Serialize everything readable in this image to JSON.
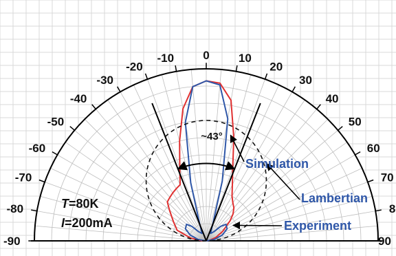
{
  "chart_data": {
    "type": "polar",
    "angle_ticks": [
      "-90",
      "-80",
      "-70",
      "-60",
      "-50",
      "-40",
      "-30",
      "-20",
      "-10",
      "0",
      "10",
      "20",
      "30",
      "40",
      "50",
      "60",
      "70",
      "80",
      "90"
    ],
    "angle_range": [
      -90,
      90
    ],
    "radius_range": [
      0,
      1
    ],
    "grid": true,
    "colors": {
      "simulation": "#e03030",
      "experiment": "#2f57a8",
      "lambertian": "#111111",
      "label": "#2f57a8"
    },
    "series": [
      {
        "name": "Simulation",
        "angles": [
          -90,
          -80,
          -70,
          -60,
          -50,
          -45,
          -40,
          -35,
          -30,
          -25,
          -20,
          -15,
          -10,
          -5,
          0,
          5,
          10,
          15,
          20,
          25,
          30,
          35,
          40,
          45,
          50,
          60,
          70,
          80,
          90
        ],
        "values": [
          0.02,
          0.09,
          0.18,
          0.22,
          0.28,
          0.32,
          0.33,
          0.34,
          0.35,
          0.36,
          0.45,
          0.6,
          0.78,
          0.9,
          0.93,
          0.92,
          0.83,
          0.62,
          0.45,
          0.36,
          0.3,
          0.27,
          0.25,
          0.22,
          0.18,
          0.11,
          0.06,
          0.02,
          0.0
        ]
      },
      {
        "name": "Experiment",
        "angles": [
          -90,
          -80,
          -70,
          -60,
          -50,
          -45,
          -40,
          -30,
          -20,
          -15,
          -10,
          -5,
          0,
          5,
          10,
          15,
          20,
          30,
          40,
          45,
          50,
          60,
          70,
          80,
          90
        ],
        "values": [
          0.0,
          0.05,
          0.1,
          0.14,
          0.15,
          0.12,
          0.07,
          0.05,
          0.12,
          0.35,
          0.7,
          0.9,
          0.93,
          0.91,
          0.72,
          0.36,
          0.12,
          0.05,
          0.07,
          0.12,
          0.15,
          0.14,
          0.1,
          0.05,
          0.0
        ]
      },
      {
        "name": "Lambertian",
        "formula": "cos(angle)",
        "scale": 0.7
      }
    ],
    "annotations": {
      "fwhm_label": "~43°",
      "fwhm_arc_degrees": [
        -21.5,
        21.5
      ],
      "fwhm_arc_radius": 0.45,
      "fwhm_lines_degrees": [
        -21.5,
        21.5
      ],
      "simulation_label": "Simulation",
      "lambertian_label": "Lambertian",
      "experiment_label": "Experiment"
    },
    "conditions": {
      "line1_var": "T",
      "line1_val": "=80K",
      "line2_var": "I",
      "line2_val": "=200mA"
    }
  }
}
